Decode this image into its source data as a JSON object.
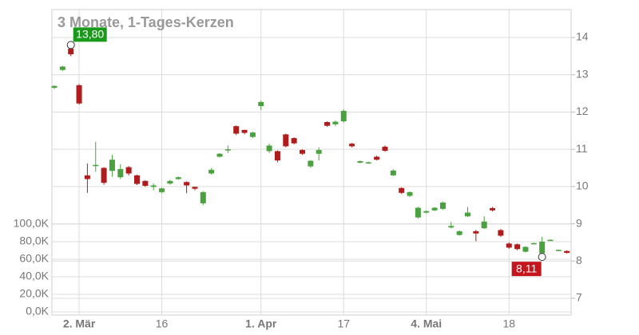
{
  "chart_data": {
    "type": "candlestick",
    "title": "3 Monate, 1-Tages-Kerzen",
    "categories": [
      null,
      null,
      null,
      "2. Mär",
      null,
      null,
      null,
      null,
      null,
      null,
      null,
      null,
      null,
      "16",
      null,
      null,
      null,
      null,
      null,
      null,
      null,
      null,
      null,
      null,
      null,
      "1. Apr",
      null,
      null,
      null,
      null,
      null,
      null,
      null,
      null,
      null,
      "17",
      null,
      null,
      null,
      null,
      null,
      null,
      null,
      null,
      null,
      "4. Mai",
      null,
      null,
      null,
      null,
      null,
      null,
      null,
      null,
      null,
      "18",
      null,
      null,
      null,
      null,
      null,
      null,
      null
    ],
    "open": [
      12.65,
      13.13,
      13.7,
      12.72,
      10.3,
      10.55,
      10.5,
      10.42,
      10.25,
      10.52,
      10.3,
      10.15,
      9.99,
      9.85,
      10.08,
      10.2,
      10.12,
      9.99,
      9.55,
      10.35,
      10.8,
      10.98,
      11.62,
      11.52,
      11.33,
      12.16,
      10.95,
      10.95,
      11.4,
      11.3,
      10.98,
      10.54,
      10.88,
      11.73,
      11.67,
      11.75,
      11.15,
      10.64,
      10.64,
      10.8,
      11.07,
      10.3,
      9.96,
      9.75,
      9.17,
      9.3,
      9.36,
      9.4,
      8.9,
      8.7,
      9.2,
      8.8,
      8.88,
      9.42,
      8.83,
      8.47,
      8.45,
      8.25,
      8.47,
      8.21,
      8.56,
      8.29,
      8.27
    ],
    "high": [
      12.72,
      13.24,
      13.8,
      12.75,
      10.62,
      11.2,
      10.52,
      10.85,
      10.6,
      10.55,
      10.32,
      10.17,
      10.08,
      9.97,
      10.18,
      10.27,
      10.14,
      10.0,
      9.88,
      10.5,
      10.9,
      11.1,
      11.64,
      11.52,
      11.47,
      12.3,
      11.15,
      10.97,
      11.42,
      11.32,
      11.0,
      10.71,
      11.05,
      11.75,
      11.77,
      12.07,
      11.17,
      10.7,
      10.67,
      10.83,
      11.1,
      10.46,
      9.98,
      9.87,
      9.46,
      9.36,
      9.45,
      9.6,
      9.05,
      8.82,
      9.45,
      8.84,
      9.2,
      9.45,
      8.86,
      8.5,
      8.47,
      8.4,
      8.5,
      8.65,
      8.58,
      8.31,
      8.29
    ],
    "low": [
      12.62,
      13.1,
      13.5,
      12.2,
      9.83,
      10.4,
      10.05,
      10.26,
      10.2,
      10.3,
      10.04,
      9.99,
      9.9,
      9.82,
      10.05,
      10.18,
      9.82,
      9.9,
      9.5,
      10.32,
      10.78,
      10.9,
      11.38,
      11.4,
      11.3,
      12.05,
      10.9,
      10.65,
      11.05,
      11.13,
      10.85,
      10.5,
      10.7,
      11.6,
      11.62,
      11.72,
      11.05,
      10.62,
      10.62,
      10.7,
      10.93,
      10.28,
      9.8,
      9.72,
      9.14,
      9.28,
      9.34,
      9.38,
      8.88,
      8.68,
      9.18,
      8.53,
      8.86,
      9.33,
      8.65,
      8.33,
      8.29,
      8.23,
      8.45,
      8.11,
      8.54,
      8.27,
      8.2
    ],
    "close": [
      12.7,
      13.22,
      13.55,
      12.23,
      10.2,
      10.58,
      10.1,
      10.72,
      10.47,
      10.35,
      10.07,
      10.02,
      10.03,
      9.95,
      10.15,
      10.25,
      10.03,
      9.94,
      9.85,
      10.45,
      10.88,
      11.0,
      11.42,
      11.44,
      11.45,
      12.27,
      11.1,
      10.7,
      11.08,
      11.16,
      10.88,
      10.69,
      10.98,
      11.63,
      11.74,
      12.03,
      11.08,
      10.68,
      10.65,
      10.72,
      10.96,
      10.43,
      9.83,
      9.85,
      9.43,
      9.34,
      9.43,
      9.57,
      8.94,
      8.8,
      9.3,
      8.74,
      9.06,
      9.36,
      8.68,
      8.36,
      8.32,
      8.38,
      8.48,
      8.52,
      8.57,
      8.3,
      8.22
    ],
    "up_color": "#4aa23e",
    "down_color": "#b01c1c",
    "max_label": {
      "value": 13.8,
      "label": "13,80"
    },
    "min_label": {
      "value": 8.11,
      "label": "8,11"
    },
    "ylim": [
      6.55,
      14.75
    ],
    "yticks": [
      7,
      8,
      9,
      10,
      11,
      12,
      13,
      14
    ],
    "y2lim": [
      -3640,
      344500
    ],
    "y2ticks": [
      {
        "value": 0,
        "label": "0,0K"
      },
      {
        "value": 20000,
        "label": "20,0K"
      },
      {
        "value": 40000,
        "label": "40,0K"
      },
      {
        "value": 60000,
        "label": "60,0K"
      },
      {
        "value": 80000,
        "label": "80,0K"
      },
      {
        "value": 100000,
        "label": "100,0K"
      }
    ],
    "grid": true
  }
}
